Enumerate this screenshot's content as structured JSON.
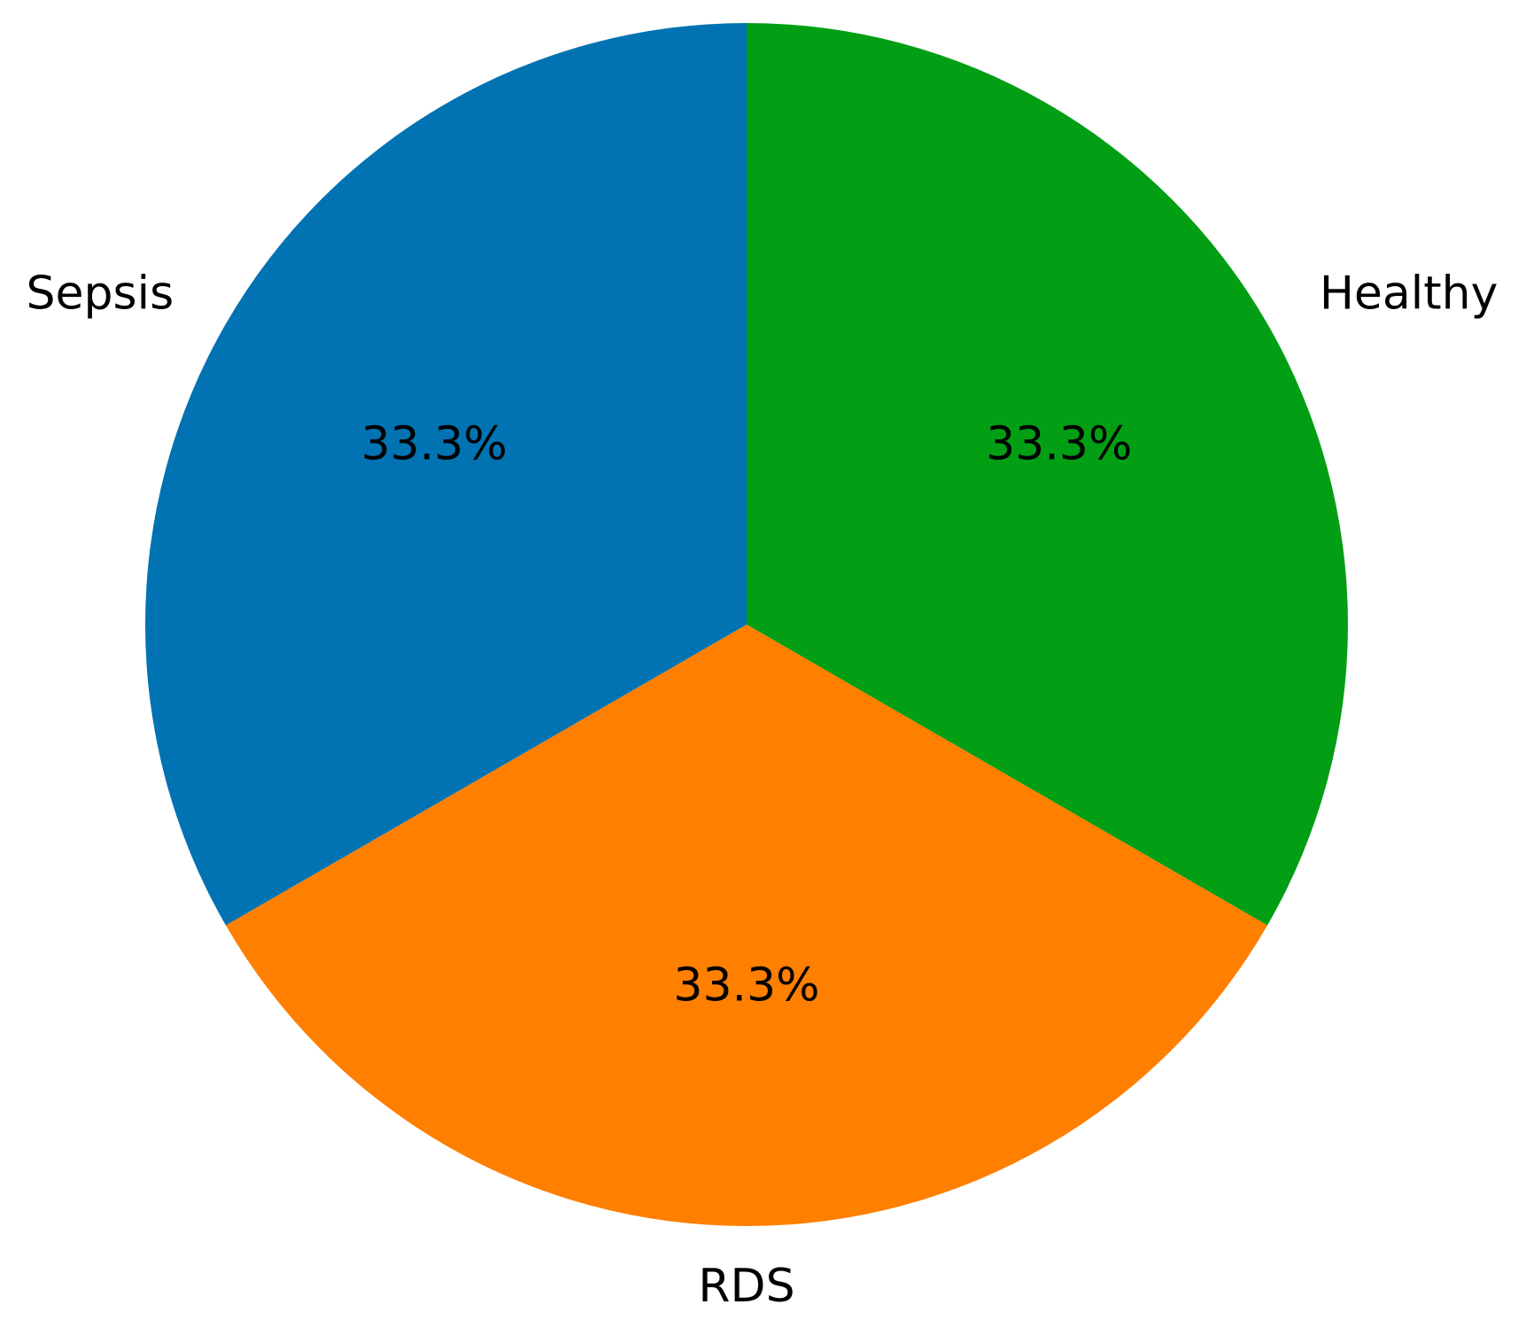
{
  "chart_data": {
    "type": "pie",
    "title": "",
    "slices": [
      {
        "label": "Healthy",
        "value": 33.3,
        "pct_label": "33.3%",
        "color": "#029e14"
      },
      {
        "label": "RDS",
        "value": 33.3,
        "pct_label": "33.3%",
        "color": "#ff7f00"
      },
      {
        "label": "Sepsis",
        "value": 33.3,
        "pct_label": "33.3%",
        "color": "#0173b2"
      }
    ],
    "start_angle_deg": 90,
    "direction": "clockwise",
    "legend": "none"
  }
}
